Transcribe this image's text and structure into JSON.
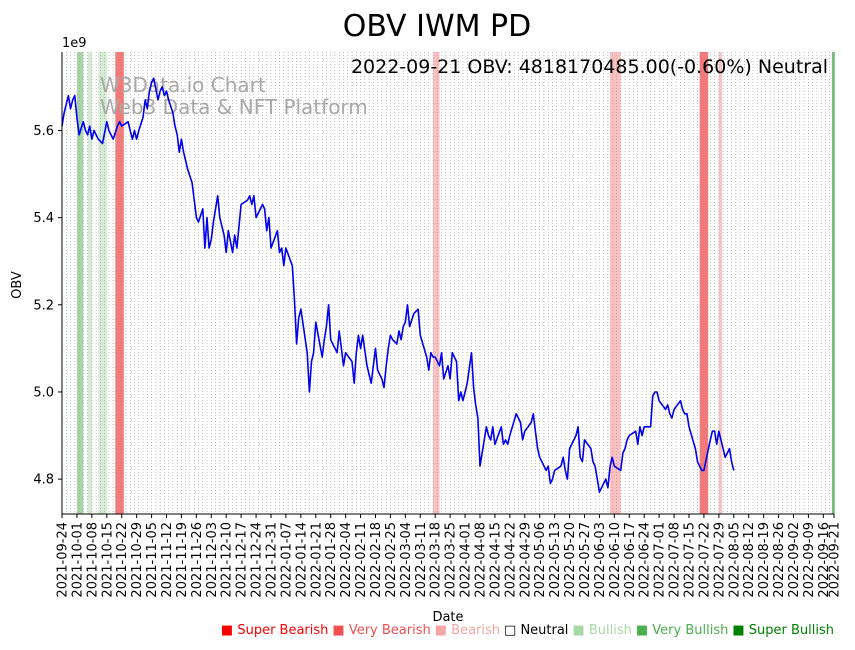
{
  "chart_data": {
    "type": "line",
    "title": "OBV IWM PD",
    "annotation": "2022-09-21 OBV: 4818170485.00(-0.60%) Neutral",
    "watermark": [
      "W3Data.io Chart",
      "Web3 Data & NFT Platform"
    ],
    "xlabel": "Date",
    "ylabel": "OBV",
    "y_multiplier": "1e9",
    "ylim": [
      4.72,
      5.78
    ],
    "yticks": [
      4.8,
      5.0,
      5.2,
      5.4,
      5.6
    ],
    "ytick_labels": [
      "4.8",
      "5.0",
      "5.2",
      "5.4",
      "5.6"
    ],
    "xlim": [
      "2021-09-24",
      "2022-09-21"
    ],
    "xtick_labels": [
      "2021-09-24",
      "2021-10-01",
      "2021-10-08",
      "2021-10-15",
      "2021-10-22",
      "2021-10-29",
      "2021-11-05",
      "2021-11-12",
      "2021-11-19",
      "2021-11-26",
      "2021-12-03",
      "2021-12-10",
      "2021-12-17",
      "2021-12-24",
      "2021-12-31",
      "2022-01-07",
      "2022-01-14",
      "2022-01-21",
      "2022-01-28",
      "2022-02-04",
      "2022-02-11",
      "2022-02-18",
      "2022-02-25",
      "2022-03-04",
      "2022-03-11",
      "2022-03-18",
      "2022-03-25",
      "2022-04-01",
      "2022-04-08",
      "2022-04-15",
      "2022-04-22",
      "2022-04-29",
      "2022-05-06",
      "2022-05-13",
      "2022-05-20",
      "2022-05-27",
      "2022-06-03",
      "2022-06-10",
      "2022-06-17",
      "2022-06-24",
      "2022-07-01",
      "2022-07-08",
      "2022-07-15",
      "2022-07-22",
      "2022-07-29",
      "2022-08-05",
      "2022-08-12",
      "2022-08-19",
      "2022-08-26",
      "2022-09-02",
      "2022-09-09",
      "2022-09-16",
      "2022-09-21"
    ],
    "grid": "vertical dotted",
    "series": [
      {
        "color": "#0000ee",
        "points": [
          [
            "2021-09-24",
            5.61
          ],
          [
            "2021-09-25",
            5.64
          ],
          [
            "2021-09-27",
            5.68
          ],
          [
            "2021-09-28",
            5.65
          ],
          [
            "2021-09-29",
            5.67
          ],
          [
            "2021-09-30",
            5.68
          ],
          [
            "2021-10-01",
            5.63
          ],
          [
            "2021-10-02",
            5.59
          ],
          [
            "2021-10-04",
            5.62
          ],
          [
            "2021-10-05",
            5.6
          ],
          [
            "2021-10-06",
            5.59
          ],
          [
            "2021-10-07",
            5.61
          ],
          [
            "2021-10-08",
            5.58
          ],
          [
            "2021-10-09",
            5.6
          ],
          [
            "2021-10-11",
            5.58
          ],
          [
            "2021-10-13",
            5.57
          ],
          [
            "2021-10-15",
            5.62
          ],
          [
            "2021-10-16",
            5.6
          ],
          [
            "2021-10-18",
            5.58
          ],
          [
            "2021-10-20",
            5.61
          ],
          [
            "2021-10-21",
            5.62
          ],
          [
            "2021-10-22",
            5.61
          ],
          [
            "2021-10-25",
            5.62
          ],
          [
            "2021-10-26",
            5.6
          ],
          [
            "2021-10-27",
            5.58
          ],
          [
            "2021-10-28",
            5.6
          ],
          [
            "2021-10-29",
            5.58
          ],
          [
            "2021-10-30",
            5.6
          ],
          [
            "2021-11-01",
            5.63
          ],
          [
            "2021-11-02",
            5.67
          ],
          [
            "2021-11-03",
            5.65
          ],
          [
            "2021-11-04",
            5.69
          ],
          [
            "2021-11-05",
            5.71
          ],
          [
            "2021-11-06",
            5.72
          ],
          [
            "2021-11-08",
            5.67
          ],
          [
            "2021-11-09",
            5.69
          ],
          [
            "2021-11-10",
            5.7
          ],
          [
            "2021-11-11",
            5.68
          ],
          [
            "2021-11-12",
            5.69
          ],
          [
            "2021-11-13",
            5.67
          ],
          [
            "2021-11-15",
            5.64
          ],
          [
            "2021-11-16",
            5.61
          ],
          [
            "2021-11-17",
            5.59
          ],
          [
            "2021-11-18",
            5.55
          ],
          [
            "2021-11-19",
            5.58
          ],
          [
            "2021-11-20",
            5.55
          ],
          [
            "2021-11-22",
            5.51
          ],
          [
            "2021-11-24",
            5.48
          ],
          [
            "2021-11-26",
            5.4
          ],
          [
            "2021-11-27",
            5.39
          ],
          [
            "2021-11-29",
            5.42
          ],
          [
            "2021-11-30",
            5.33
          ],
          [
            "2021-12-01",
            5.4
          ],
          [
            "2021-12-02",
            5.33
          ],
          [
            "2021-12-03",
            5.35
          ],
          [
            "2021-12-04",
            5.39
          ],
          [
            "2021-12-06",
            5.45
          ],
          [
            "2021-12-07",
            5.4
          ],
          [
            "2021-12-08",
            5.38
          ],
          [
            "2021-12-09",
            5.36
          ],
          [
            "2021-12-10",
            5.32
          ],
          [
            "2021-12-11",
            5.37
          ],
          [
            "2021-12-13",
            5.32
          ],
          [
            "2021-12-14",
            5.36
          ],
          [
            "2021-12-15",
            5.33
          ],
          [
            "2021-12-16",
            5.38
          ],
          [
            "2021-12-17",
            5.43
          ],
          [
            "2021-12-20",
            5.44
          ],
          [
            "2021-12-21",
            5.45
          ],
          [
            "2021-12-22",
            5.43
          ],
          [
            "2021-12-23",
            5.45
          ],
          [
            "2021-12-24",
            5.4
          ],
          [
            "2021-12-27",
            5.43
          ],
          [
            "2021-12-28",
            5.42
          ],
          [
            "2021-12-29",
            5.37
          ],
          [
            "2021-12-30",
            5.4
          ],
          [
            "2021-12-31",
            5.33
          ],
          [
            "2022-01-03",
            5.37
          ],
          [
            "2022-01-04",
            5.32
          ],
          [
            "2022-01-05",
            5.33
          ],
          [
            "2022-01-06",
            5.29
          ],
          [
            "2022-01-07",
            5.33
          ],
          [
            "2022-01-10",
            5.29
          ],
          [
            "2022-01-11",
            5.21
          ],
          [
            "2022-01-12",
            5.11
          ],
          [
            "2022-01-13",
            5.17
          ],
          [
            "2022-01-14",
            5.19
          ],
          [
            "2022-01-17",
            5.09
          ],
          [
            "2022-01-18",
            5.0
          ],
          [
            "2022-01-19",
            5.07
          ],
          [
            "2022-01-20",
            5.09
          ],
          [
            "2022-01-21",
            5.16
          ],
          [
            "2022-01-24",
            5.08
          ],
          [
            "2022-01-25",
            5.12
          ],
          [
            "2022-01-26",
            5.15
          ],
          [
            "2022-01-27",
            5.2
          ],
          [
            "2022-01-28",
            5.12
          ],
          [
            "2022-01-31",
            5.09
          ],
          [
            "2022-02-01",
            5.14
          ],
          [
            "2022-02-02",
            5.1
          ],
          [
            "2022-02-03",
            5.06
          ],
          [
            "2022-02-04",
            5.09
          ],
          [
            "2022-02-07",
            5.07
          ],
          [
            "2022-02-08",
            5.02
          ],
          [
            "2022-02-09",
            5.09
          ],
          [
            "2022-02-10",
            5.13
          ],
          [
            "2022-02-11",
            5.1
          ],
          [
            "2022-02-12",
            5.13
          ],
          [
            "2022-02-14",
            5.06
          ],
          [
            "2022-02-15",
            5.04
          ],
          [
            "2022-02-16",
            5.02
          ],
          [
            "2022-02-18",
            5.1
          ],
          [
            "2022-02-19",
            5.05
          ],
          [
            "2022-02-21",
            5.03
          ],
          [
            "2022-02-22",
            5.01
          ],
          [
            "2022-02-23",
            5.06
          ],
          [
            "2022-02-24",
            5.1
          ],
          [
            "2022-02-25",
            5.13
          ],
          [
            "2022-02-26",
            5.12
          ],
          [
            "2022-02-28",
            5.11
          ],
          [
            "2022-03-01",
            5.14
          ],
          [
            "2022-03-02",
            5.12
          ],
          [
            "2022-03-03",
            5.15
          ],
          [
            "2022-03-04",
            5.16
          ],
          [
            "2022-03-05",
            5.2
          ],
          [
            "2022-03-06",
            5.15
          ],
          [
            "2022-03-08",
            5.18
          ],
          [
            "2022-03-10",
            5.19
          ],
          [
            "2022-03-11",
            5.13
          ],
          [
            "2022-03-14",
            5.08
          ],
          [
            "2022-03-15",
            5.05
          ],
          [
            "2022-03-16",
            5.09
          ],
          [
            "2022-03-17",
            5.08
          ],
          [
            "2022-03-18",
            5.08
          ],
          [
            "2022-03-20",
            5.06
          ],
          [
            "2022-03-21",
            5.09
          ],
          [
            "2022-03-22",
            5.03
          ],
          [
            "2022-03-24",
            5.06
          ],
          [
            "2022-03-25",
            5.03
          ],
          [
            "2022-03-26",
            5.09
          ],
          [
            "2022-03-28",
            5.07
          ],
          [
            "2022-03-29",
            4.98
          ],
          [
            "2022-03-30",
            5.0
          ],
          [
            "2022-03-31",
            4.98
          ],
          [
            "2022-04-01",
            5.0
          ],
          [
            "2022-04-02",
            5.02
          ],
          [
            "2022-04-04",
            5.09
          ],
          [
            "2022-04-05",
            5.01
          ],
          [
            "2022-04-06",
            4.97
          ],
          [
            "2022-04-07",
            4.94
          ],
          [
            "2022-04-08",
            4.83
          ],
          [
            "2022-04-11",
            4.92
          ],
          [
            "2022-04-12",
            4.9
          ],
          [
            "2022-04-13",
            4.89
          ],
          [
            "2022-04-14",
            4.92
          ],
          [
            "2022-04-15",
            4.88
          ],
          [
            "2022-04-18",
            4.92
          ],
          [
            "2022-04-19",
            4.88
          ],
          [
            "2022-04-20",
            4.89
          ],
          [
            "2022-04-21",
            4.88
          ],
          [
            "2022-04-22",
            4.9
          ],
          [
            "2022-04-25",
            4.95
          ],
          [
            "2022-04-26",
            4.94
          ],
          [
            "2022-04-27",
            4.93
          ],
          [
            "2022-04-28",
            4.89
          ],
          [
            "2022-04-29",
            4.91
          ],
          [
            "2022-05-02",
            4.93
          ],
          [
            "2022-05-03",
            4.95
          ],
          [
            "2022-05-04",
            4.91
          ],
          [
            "2022-05-05",
            4.87
          ],
          [
            "2022-05-06",
            4.85
          ],
          [
            "2022-05-09",
            4.82
          ],
          [
            "2022-05-10",
            4.83
          ],
          [
            "2022-05-11",
            4.79
          ],
          [
            "2022-05-12",
            4.8
          ],
          [
            "2022-05-13",
            4.82
          ],
          [
            "2022-05-16",
            4.83
          ],
          [
            "2022-05-17",
            4.85
          ],
          [
            "2022-05-18",
            4.82
          ],
          [
            "2022-05-19",
            4.8
          ],
          [
            "2022-05-20",
            4.87
          ],
          [
            "2022-05-23",
            4.9
          ],
          [
            "2022-05-24",
            4.92
          ],
          [
            "2022-05-25",
            4.85
          ],
          [
            "2022-05-26",
            4.84
          ],
          [
            "2022-05-27",
            4.89
          ],
          [
            "2022-05-30",
            4.87
          ],
          [
            "2022-05-31",
            4.84
          ],
          [
            "2022-06-01",
            4.83
          ],
          [
            "2022-06-02",
            4.8
          ],
          [
            "2022-06-03",
            4.77
          ],
          [
            "2022-06-06",
            4.8
          ],
          [
            "2022-06-07",
            4.78
          ],
          [
            "2022-06-08",
            4.83
          ],
          [
            "2022-06-09",
            4.85
          ],
          [
            "2022-06-10",
            4.83
          ],
          [
            "2022-06-13",
            4.82
          ],
          [
            "2022-06-14",
            4.86
          ],
          [
            "2022-06-15",
            4.87
          ],
          [
            "2022-06-16",
            4.89
          ],
          [
            "2022-06-17",
            4.9
          ],
          [
            "2022-06-20",
            4.91
          ],
          [
            "2022-06-21",
            4.88
          ],
          [
            "2022-06-22",
            4.92
          ],
          [
            "2022-06-23",
            4.9
          ],
          [
            "2022-06-24",
            4.92
          ],
          [
            "2022-06-27",
            4.92
          ],
          [
            "2022-06-28",
            4.99
          ],
          [
            "2022-06-29",
            5.0
          ],
          [
            "2022-06-30",
            5.0
          ],
          [
            "2022-07-01",
            4.98
          ],
          [
            "2022-07-04",
            4.96
          ],
          [
            "2022-07-05",
            4.97
          ],
          [
            "2022-07-06",
            4.95
          ],
          [
            "2022-07-07",
            4.94
          ],
          [
            "2022-07-08",
            4.96
          ],
          [
            "2022-07-11",
            4.98
          ],
          [
            "2022-07-12",
            4.96
          ],
          [
            "2022-07-13",
            4.95
          ],
          [
            "2022-07-14",
            4.95
          ],
          [
            "2022-07-15",
            4.92
          ],
          [
            "2022-07-18",
            4.87
          ],
          [
            "2022-07-19",
            4.84
          ],
          [
            "2022-07-20",
            4.83
          ],
          [
            "2022-07-21",
            4.82
          ],
          [
            "2022-07-22",
            4.82
          ],
          [
            "2022-07-25",
            4.89
          ],
          [
            "2022-07-26",
            4.91
          ],
          [
            "2022-07-27",
            4.91
          ],
          [
            "2022-07-28",
            4.88
          ],
          [
            "2022-07-29",
            4.91
          ],
          [
            "2022-08-01",
            4.85
          ],
          [
            "2022-08-02",
            4.86
          ],
          [
            "2022-08-03",
            4.87
          ],
          [
            "2022-08-04",
            4.84
          ],
          [
            "2022-08-05",
            4.82
          ]
        ]
      }
    ],
    "shaded_regions": [
      {
        "start": "2021-10-01",
        "end": "2021-10-04",
        "class": "very_bullish"
      },
      {
        "start": "2021-10-06",
        "end": "2021-10-08",
        "class": "bullish"
      },
      {
        "start": "2021-10-11",
        "end": "2021-10-15",
        "class": "bullish"
      },
      {
        "start": "2021-10-19",
        "end": "2021-10-23",
        "class": "very_bearish"
      },
      {
        "start": "2022-03-17",
        "end": "2022-03-20",
        "class": "bearish"
      },
      {
        "start": "2022-06-08",
        "end": "2022-06-13",
        "class": "bearish"
      },
      {
        "start": "2022-07-20",
        "end": "2022-07-24",
        "class": "very_bearish"
      },
      {
        "start": "2022-07-29",
        "end": "2022-07-30",
        "class": "bearish"
      },
      {
        "start": "2022-09-20",
        "end": "2022-09-21",
        "class": "super_bullish"
      }
    ],
    "legend": [
      {
        "key": "super_bearish",
        "label": "Super Bearish",
        "color": "#ff0000",
        "marker": "■"
      },
      {
        "key": "very_bearish",
        "label": "Very Bearish",
        "color": "#f05050",
        "marker": "■"
      },
      {
        "key": "bearish",
        "label": "Bearish",
        "color": "#f4a6a6",
        "marker": "■"
      },
      {
        "key": "neutral",
        "label": "Neutral",
        "color": "#000000",
        "marker": "□"
      },
      {
        "key": "bullish",
        "label": "Bullish",
        "color": "#a8d8a8",
        "marker": "■"
      },
      {
        "key": "very_bullish",
        "label": "Very Bullish",
        "color": "#4caf50",
        "marker": "■"
      },
      {
        "key": "super_bullish",
        "label": "Super Bullish",
        "color": "#008000",
        "marker": "■"
      }
    ],
    "legend_placement": "bottom-right",
    "region_colors": {
      "super_bearish": "#ff3030",
      "very_bearish": "#f47a7a",
      "bearish": "#fac0c0",
      "bullish": "#d4ecd4",
      "very_bullish": "#a8d4a8",
      "super_bullish": "#7cbc7c"
    }
  }
}
